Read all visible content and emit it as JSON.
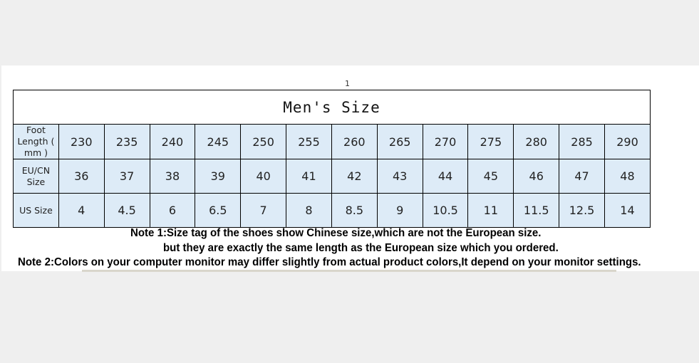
{
  "page_number": "1",
  "table": {
    "title": "Men's Size",
    "rows": [
      {
        "label": "Foot Length ( mm )",
        "values": [
          "230",
          "235",
          "240",
          "245",
          "250",
          "255",
          "260",
          "265",
          "270",
          "275",
          "280",
          "285",
          "290"
        ]
      },
      {
        "label": "EU/CN Size",
        "values": [
          "36",
          "37",
          "38",
          "39",
          "40",
          "41",
          "42",
          "43",
          "44",
          "45",
          "46",
          "47",
          "48"
        ]
      },
      {
        "label": "US Size",
        "values": [
          "4",
          "4.5",
          "6",
          "6.5",
          "7",
          "8",
          "8.5",
          "9",
          "10.5",
          "11",
          "11.5",
          "12.5",
          "14"
        ]
      }
    ]
  },
  "notes": {
    "note1_line1": "Note 1:Size tag of the shoes show Chinese size,which are not the European size.",
    "note1_line2": "but they are exactly the same length as the European size which you ordered.",
    "note2": "Note 2:Colors on your computer monitor may differ slightly from actual product colors,It depend on your monitor settings."
  }
}
